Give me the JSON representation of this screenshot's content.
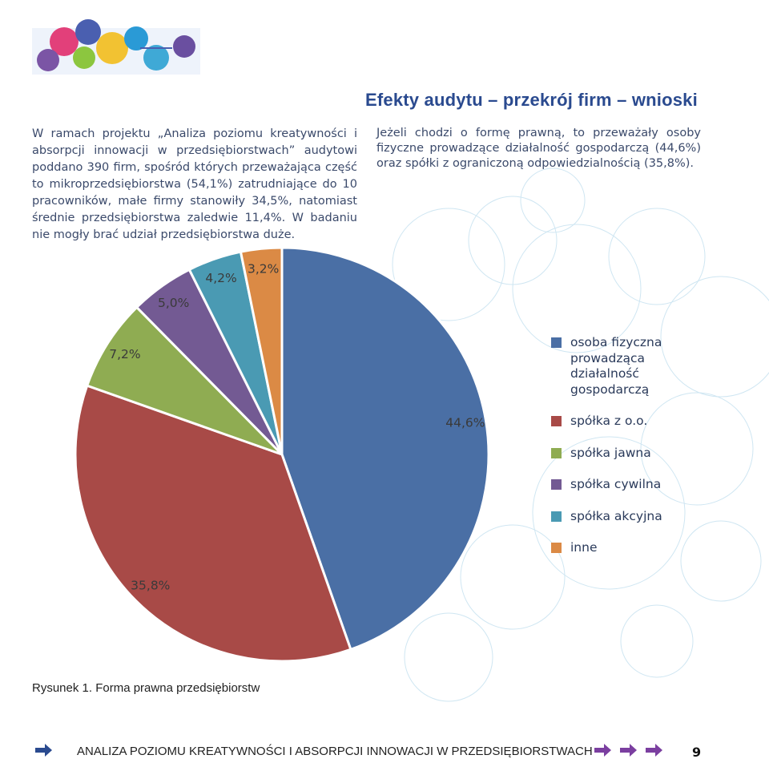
{
  "header": {
    "title": "Efekty audytu – przekrój firm – wnioski"
  },
  "intro_left": "W ramach projektu „Analiza poziomu kreatywności i absorpcji innowacji w przedsiębiorstwach” audytowi poddano 390 firm, spośród których przeważająca część to mikroprzedsiębiorstwa (54,1%) zatrudniające do 10 pracowników, małe firmy stanowiły 34,5%, natomiast średnie przedsiębiorstwa zaledwie 11,4%. W badaniu nie mogły brać udział przedsiębiorstwa duże.",
  "intro_right": "Jeżeli chodzi o formę prawną, to przeważały osoby fizyczne prowadzące działalność gospodarczą (44,6%) oraz spółki z ograniczoną odpowiedzialnością (35,8%).",
  "chart_data": {
    "type": "pie",
    "categories": [
      "osoba fizyczna prowadząca działalność gospodarczą",
      "spółka z o.o.",
      "spółka jawna",
      "spółka cywilna",
      "spółka akcyjna",
      "inne"
    ],
    "values": [
      44.6,
      35.8,
      7.2,
      5.0,
      4.2,
      3.2
    ],
    "value_labels": [
      "44,6%",
      "35,8%",
      "7,2%",
      "5,0%",
      "4,2%",
      "3,2%"
    ],
    "colors": [
      "#4a6fa5",
      "#a84a47",
      "#8fac52",
      "#735a93",
      "#4a9ab3",
      "#db8a45"
    ],
    "caption": "Rysunek 1. Forma prawna przedsiębiorstw"
  },
  "footer": {
    "text": "ANALIZA POZIOMU KREATYWNOŚCI I ABSORPCJI INNOWACJI W PRZEDSIĘBIORSTWACH",
    "page": "9"
  }
}
